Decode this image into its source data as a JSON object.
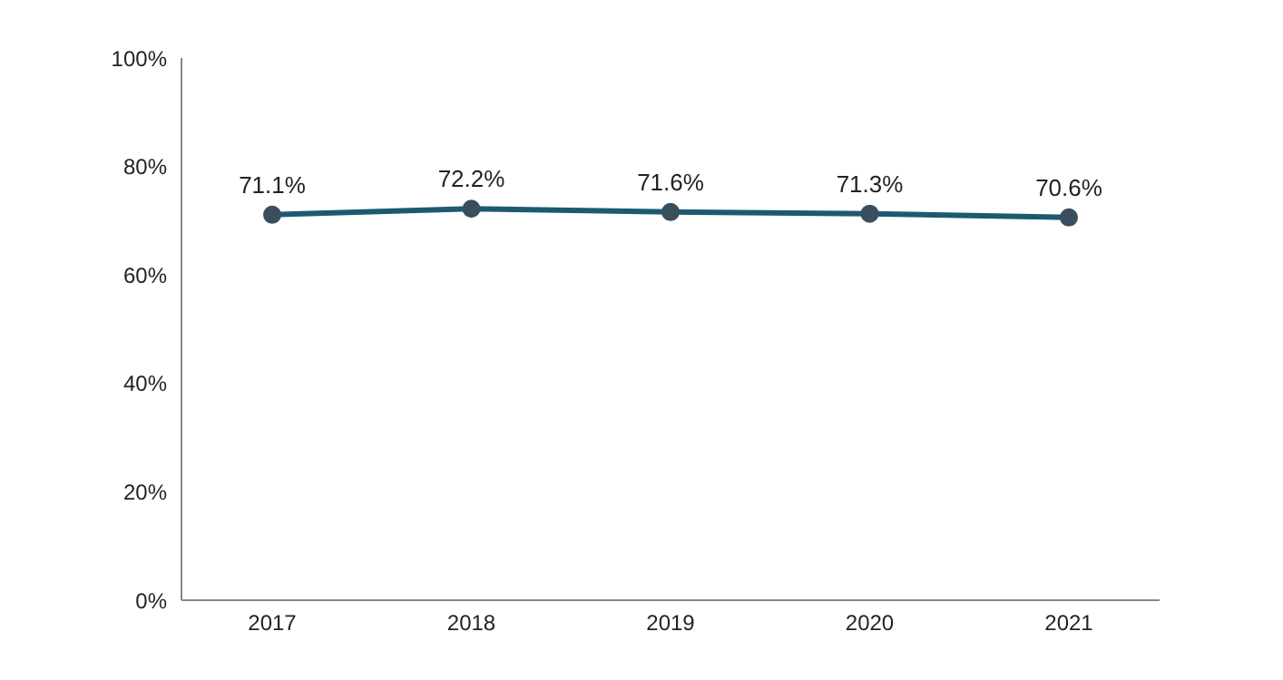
{
  "chart_data": {
    "type": "line",
    "categories": [
      "2017",
      "2018",
      "2019",
      "2020",
      "2021"
    ],
    "series": [
      {
        "color": "#1d5a72",
        "values": [
          71.1,
          72.2,
          71.6,
          71.3,
          70.6
        ],
        "value_labels": [
          "71.1%",
          "72.2%",
          "71.6%",
          "71.3%",
          "70.6%"
        ]
      }
    ],
    "ylim": [
      0,
      100
    ],
    "yticks": [
      {
        "value": 0,
        "label": "0%"
      },
      {
        "value": 20,
        "label": "20%"
      },
      {
        "value": 40,
        "label": "40%"
      },
      {
        "value": 60,
        "label": "60%"
      },
      {
        "value": 80,
        "label": "80%"
      },
      {
        "value": 100,
        "label": "100%"
      }
    ],
    "marker": "circle",
    "line_style": "solid",
    "grid": false,
    "legend": false
  }
}
